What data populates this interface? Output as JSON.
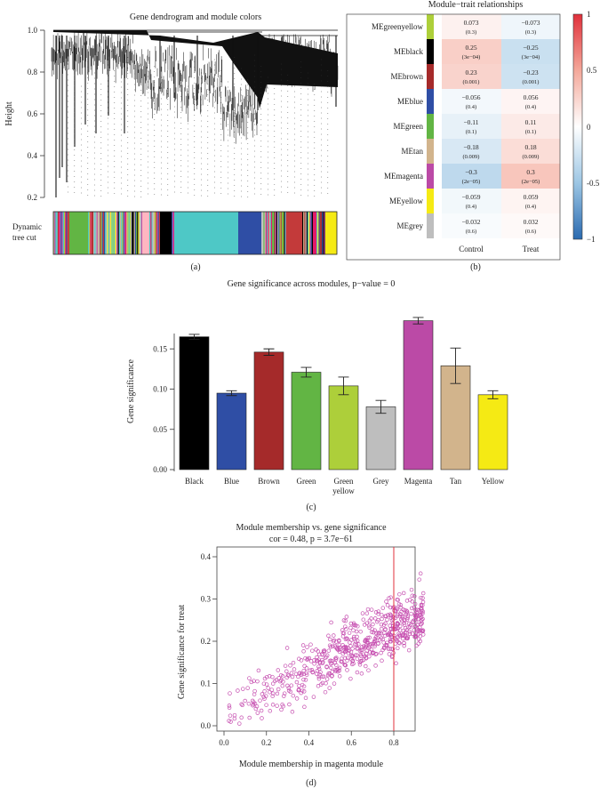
{
  "panel_a": {
    "title": "Gene dendrogram and module colors",
    "ylabel": "Height",
    "yticks": [
      "1.0",
      "0.8",
      "0.6",
      "0.4",
      "0.2"
    ],
    "tree_cut_label_line1": "Dynamic",
    "tree_cut_label_line2": "tree cut",
    "panel_label": "(a)"
  },
  "panel_b": {
    "title": "Module−trait relationships",
    "columns": [
      "Control",
      "Treat"
    ],
    "panel_label": "(b)",
    "legend_ticks": [
      "1",
      "0.5",
      "0",
      "-0.5",
      "−1"
    ],
    "rows": [
      {
        "module": "MEgreenyellow",
        "color": "#adcf3a",
        "c_cor": "0.073",
        "c_p": "(0.3)",
        "t_cor": "−0.073",
        "t_p": "(0.3)",
        "value": 0.073
      },
      {
        "module": "MEblack",
        "color": "#000000",
        "c_cor": "0.25",
        "c_p": "(3e−04)",
        "t_cor": "−0.25",
        "t_p": "(3e−04)",
        "value": 0.25
      },
      {
        "module": "MEbrown",
        "color": "#a52a2a",
        "c_cor": "0.23",
        "c_p": "(0.001)",
        "t_cor": "−0.23",
        "t_p": "(0.001)",
        "value": 0.23
      },
      {
        "module": "MEblue",
        "color": "#2f4ea5",
        "c_cor": "−0.056",
        "c_p": "(0.4)",
        "t_cor": "0.056",
        "t_p": "(0.4)",
        "value": -0.056
      },
      {
        "module": "MEgreen",
        "color": "#62b544",
        "c_cor": "−0.11",
        "c_p": "(0.1)",
        "t_cor": "0.11",
        "t_p": "(0.1)",
        "value": -0.11
      },
      {
        "module": "MEtan",
        "color": "#d2b48c",
        "c_cor": "−0.18",
        "c_p": "(0.009)",
        "t_cor": "0.18",
        "t_p": "(0.009)",
        "value": -0.18
      },
      {
        "module": "MEmagenta",
        "color": "#bb4aa6",
        "c_cor": "−0.3",
        "c_p": "(2e−05)",
        "t_cor": "0.3",
        "t_p": "(2e−05)",
        "value": -0.3
      },
      {
        "module": "MEyellow",
        "color": "#f5ea14",
        "c_cor": "−0.059",
        "c_p": "(0.4)",
        "t_cor": "0.059",
        "t_p": "(0.4)",
        "value": -0.059
      },
      {
        "module": "MEgrey",
        "color": "#bebebe",
        "c_cor": "−0.032",
        "c_p": "(0.6)",
        "t_cor": "0.032",
        "t_p": "(0.6)",
        "value": -0.032
      }
    ]
  },
  "panel_c": {
    "panel_label": "(c)"
  },
  "panel_d": {
    "panel_label": "(d)"
  },
  "chart_data": [
    {
      "type": "bar",
      "title": "Gene significance across modules, p−value = 0",
      "xlabel": "",
      "ylabel": "Gene significance",
      "ylim": [
        0,
        0.2
      ],
      "yticks": [
        "0.00",
        "0.05",
        "0.10",
        "0.15"
      ],
      "categories": [
        "Black",
        "Blue",
        "Brown",
        "Green",
        "Green yellow",
        "Grey",
        "Magenta",
        "Tan",
        "Yellow"
      ],
      "values": [
        0.165,
        0.095,
        0.146,
        0.121,
        0.104,
        0.078,
        0.185,
        0.129,
        0.093
      ],
      "errors": [
        0.003,
        0.003,
        0.004,
        0.006,
        0.011,
        0.008,
        0.004,
        0.022,
        0.005
      ],
      "colors": [
        "#000000",
        "#2f4ea5",
        "#a52a2a",
        "#62b544",
        "#adcf3a",
        "#bebebe",
        "#bb4aa6",
        "#d2b48c",
        "#f5ea14"
      ]
    },
    {
      "type": "scatter",
      "title": "Module membership vs. gene significance",
      "subtitle": "cor = 0.48, p = 3.7e−61",
      "xlabel": "Module membership in magenta module",
      "ylabel": "Gene significance for treat",
      "xlim": [
        0,
        0.95
      ],
      "ylim": [
        0,
        0.42
      ],
      "xticks": [
        "0.0",
        "0.2",
        "0.4",
        "0.6",
        "0.8"
      ],
      "yticks": [
        "0.0",
        "0.1",
        "0.2",
        "0.3",
        "0.4"
      ],
      "vline_x": 0.8,
      "point_color": "#c64fb0",
      "line_color": "#e0303b",
      "point_count": 620
    }
  ]
}
